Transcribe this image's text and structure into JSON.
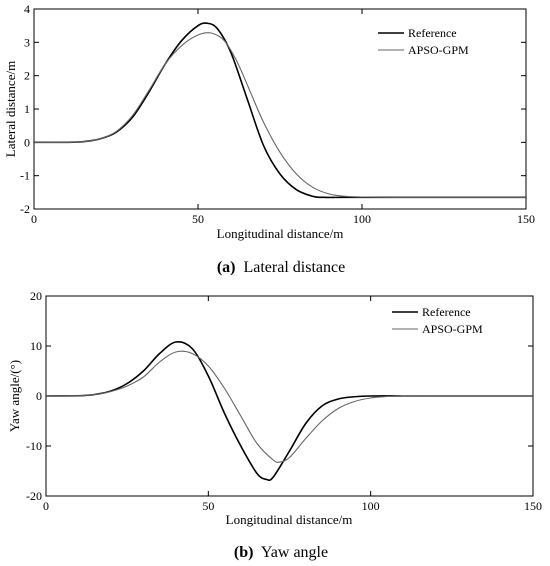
{
  "chart_data": [
    {
      "type": "line",
      "caption_letter": "(a)",
      "caption_text": "Lateral distance",
      "xlabel": "Longitudinal distance/m",
      "ylabel": "Lateral distance/m",
      "xlim": [
        0,
        150
      ],
      "ylim": [
        -2,
        4
      ],
      "xticks": [
        0,
        50,
        100,
        150
      ],
      "yticks": [
        -2,
        -1,
        0,
        1,
        2,
        3,
        4
      ],
      "grid": false,
      "legend_position": "top-right",
      "series": [
        {
          "name": "Reference",
          "color": "#000000",
          "width": 1.6,
          "x": [
            0,
            10,
            15,
            20,
            25,
            30,
            35,
            40,
            45,
            50,
            53,
            56,
            60,
            65,
            70,
            75,
            80,
            85,
            88,
            95,
            100,
            110,
            120,
            130,
            140,
            150
          ],
          "y": [
            0,
            0,
            0.02,
            0.1,
            0.3,
            0.75,
            1.5,
            2.35,
            3.05,
            3.5,
            3.57,
            3.4,
            2.7,
            1.3,
            -0.1,
            -0.95,
            -1.42,
            -1.62,
            -1.65,
            -1.65,
            -1.65,
            -1.65,
            -1.65,
            -1.65,
            -1.65,
            -1.65
          ]
        },
        {
          "name": "APSO-GPM",
          "color": "#666666",
          "width": 1.1,
          "x": [
            0,
            10,
            15,
            20,
            25,
            30,
            35,
            40,
            45,
            50,
            54,
            58,
            62,
            66,
            70,
            75,
            80,
            85,
            90,
            95,
            100,
            110,
            120,
            130,
            140,
            150
          ],
          "y": [
            0,
            0,
            0.02,
            0.1,
            0.32,
            0.8,
            1.55,
            2.35,
            2.9,
            3.22,
            3.28,
            3.05,
            2.4,
            1.5,
            0.6,
            -0.3,
            -0.95,
            -1.35,
            -1.55,
            -1.62,
            -1.64,
            -1.65,
            -1.65,
            -1.65,
            -1.65,
            -1.65
          ]
        }
      ]
    },
    {
      "type": "line",
      "caption_letter": "(b)",
      "caption_text": "Yaw angle",
      "xlabel": "Longitudinal distance/m",
      "ylabel": "Yaw angle/(°)",
      "xlim": [
        0,
        150
      ],
      "ylim": [
        -20,
        20
      ],
      "xticks": [
        0,
        50,
        100,
        150
      ],
      "yticks": [
        -20,
        -10,
        0,
        10,
        20
      ],
      "grid": false,
      "legend_position": "top-right",
      "series": [
        {
          "name": "Reference",
          "color": "#000000",
          "width": 1.6,
          "x": [
            0,
            10,
            15,
            20,
            25,
            30,
            35,
            40,
            45,
            50,
            55,
            60,
            65,
            68,
            70,
            75,
            80,
            85,
            90,
            95,
            100,
            110,
            120,
            130,
            140,
            150
          ],
          "y": [
            0,
            0.05,
            0.3,
            1,
            2.5,
            5,
            8.5,
            10.8,
            9.5,
            4,
            -3.5,
            -10,
            -15.5,
            -16.7,
            -16.2,
            -11,
            -5.5,
            -2,
            -0.6,
            -0.15,
            0,
            0,
            0,
            0,
            0,
            0
          ]
        },
        {
          "name": "APSO-GPM",
          "color": "#666666",
          "width": 1.1,
          "x": [
            0,
            10,
            15,
            20,
            25,
            30,
            35,
            40,
            45,
            50,
            55,
            60,
            65,
            70,
            72,
            75,
            80,
            85,
            90,
            95,
            100,
            105,
            110,
            120,
            130,
            150
          ],
          "y": [
            0,
            0.05,
            0.3,
            0.9,
            2,
            3.8,
            6.8,
            8.8,
            8.5,
            6,
            1.5,
            -4,
            -9.5,
            -12.8,
            -13.2,
            -12.3,
            -8.5,
            -5,
            -2.5,
            -1.1,
            -0.4,
            -0.1,
            0,
            0,
            0,
            0
          ]
        }
      ]
    }
  ]
}
